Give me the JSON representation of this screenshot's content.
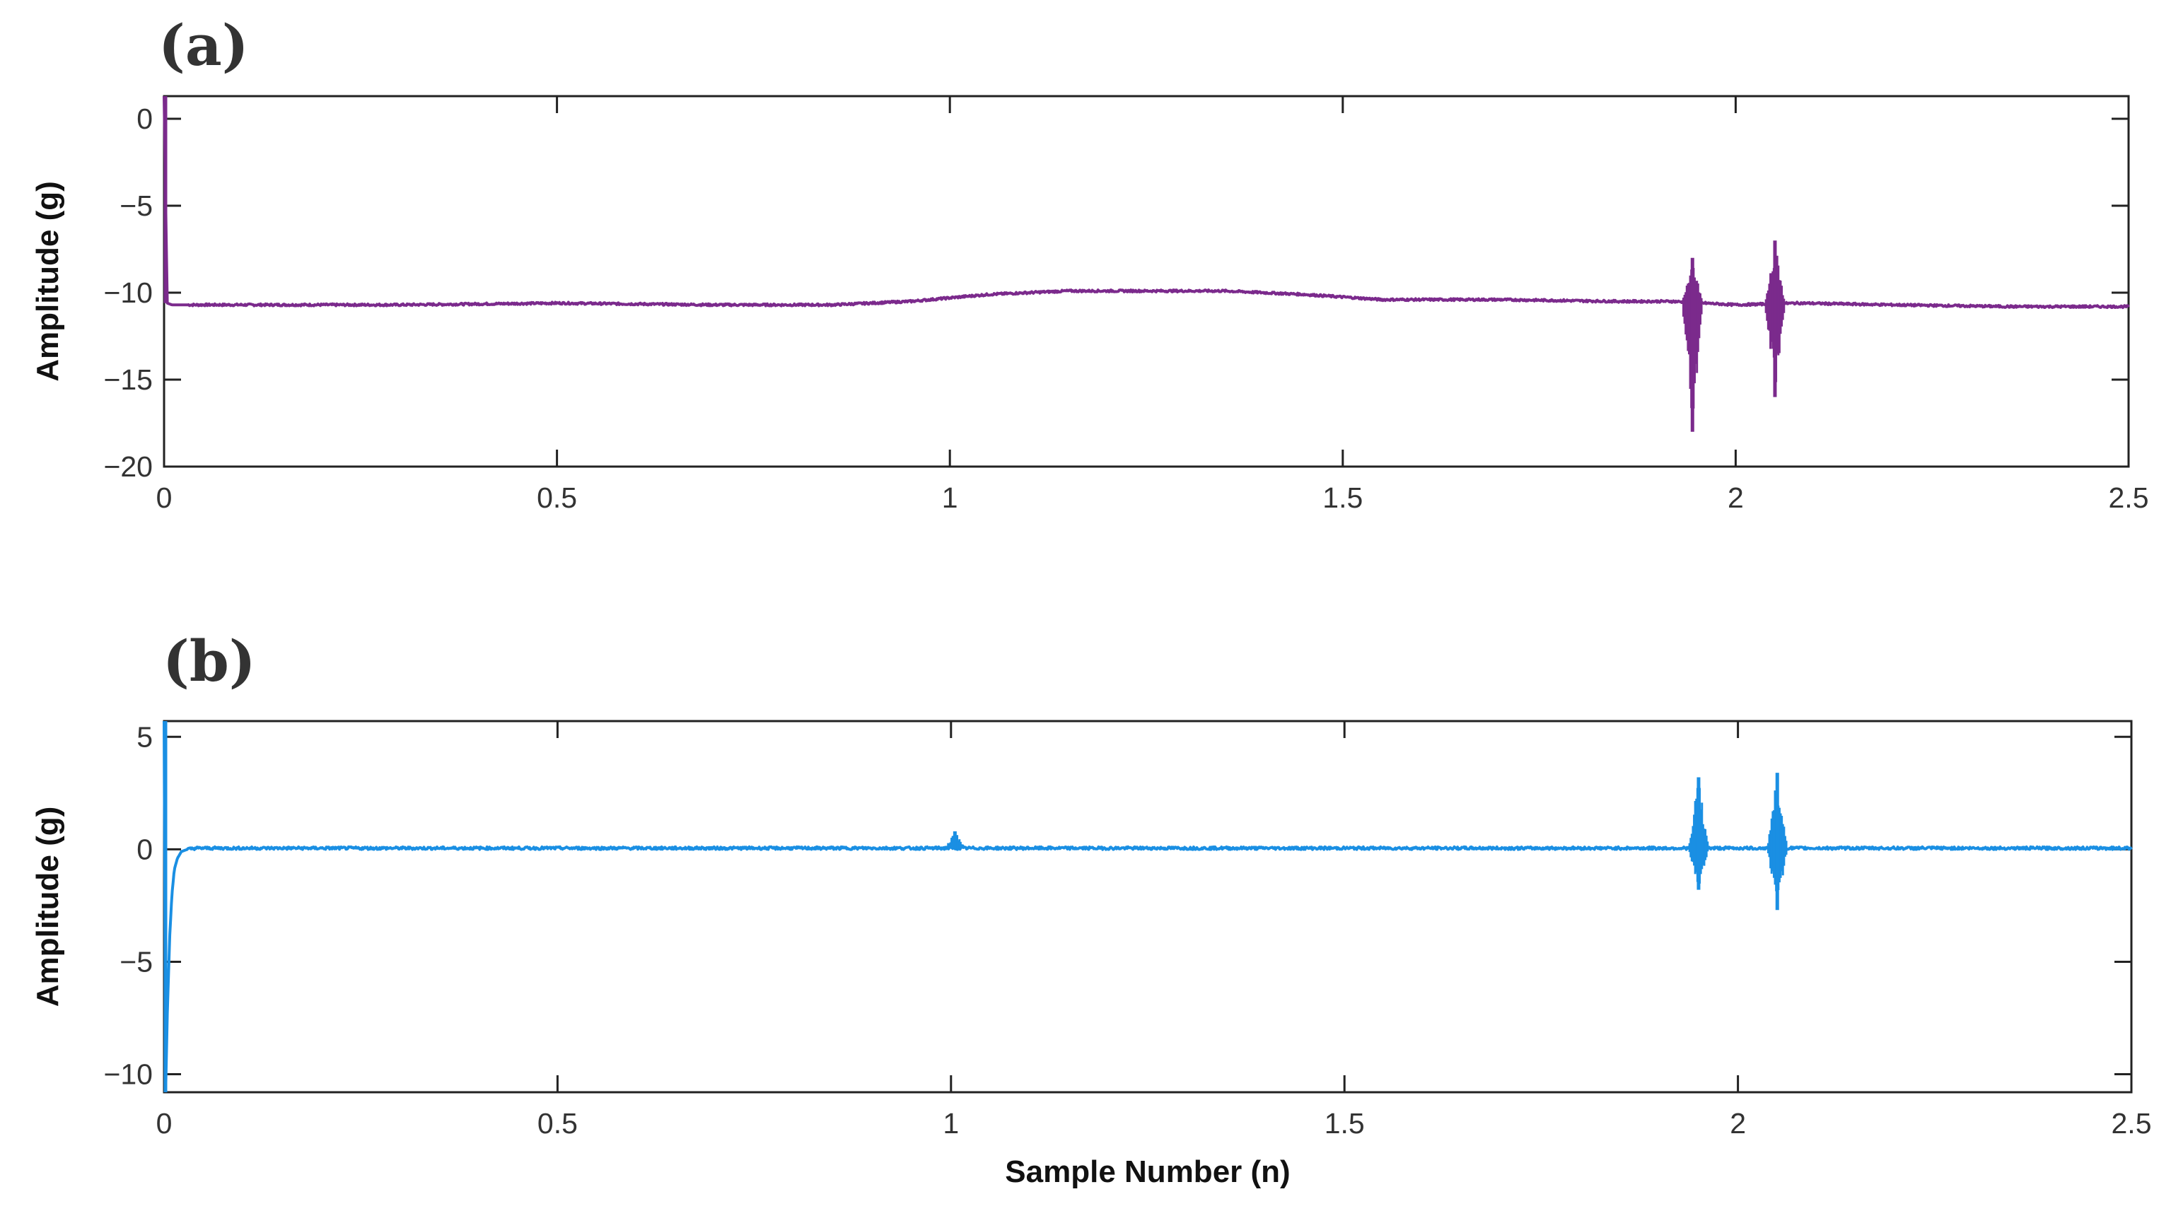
{
  "panels": [
    {
      "label": "(a)"
    },
    {
      "label": "(b)"
    }
  ],
  "chart_data": [
    {
      "type": "line",
      "panel": "(a)",
      "title": "",
      "xlabel": "",
      "ylabel": "Amplitude (g)",
      "xlim": [
        0,
        2.5
      ],
      "ylim": [
        -20,
        1.3
      ],
      "xticks": [
        0,
        0.5,
        1,
        1.5,
        2,
        2.5
      ],
      "xtick_labels": [
        "0",
        "0.5",
        "1",
        "1.5",
        "2",
        "2.5"
      ],
      "yticks": [
        0,
        -5,
        -10,
        -15,
        -20
      ],
      "ytick_labels": [
        "0",
        "−5",
        "−10",
        "−15",
        "−20"
      ],
      "grid": false,
      "color": "#7b2a8c",
      "series": [
        {
          "x": [
            0,
            0.004,
            0.01,
            0.1,
            0.3,
            0.5,
            0.7,
            0.85,
            0.95,
            1.05,
            1.15,
            1.25,
            1.35,
            1.45,
            1.55,
            1.7,
            1.85,
            1.92,
            2.0,
            2.08,
            2.2,
            2.35,
            2.5
          ],
          "values": [
            1.3,
            -10.6,
            -10.7,
            -10.7,
            -10.7,
            -10.6,
            -10.7,
            -10.7,
            -10.5,
            -10.1,
            -9.9,
            -9.9,
            -9.9,
            -10.1,
            -10.4,
            -10.4,
            -10.5,
            -10.5,
            -10.7,
            -10.6,
            -10.7,
            -10.8,
            -10.8
          ]
        }
      ],
      "bursts": [
        {
          "x": 1.945,
          "max": -8.0,
          "min": -18.0
        },
        {
          "x": 2.05,
          "max": -7.0,
          "min": -16.0
        }
      ]
    },
    {
      "type": "line",
      "panel": "(b)",
      "title": "",
      "xlabel": "Sample Number (n)",
      "ylabel": "Amplitude (g)",
      "xlim": [
        0,
        2.5
      ],
      "ylim": [
        -10.8,
        5.7
      ],
      "xticks": [
        0,
        0.5,
        1,
        1.5,
        2,
        2.5
      ],
      "xtick_labels": [
        "0",
        "0.5",
        "1",
        "1.5",
        "2",
        "2.5"
      ],
      "yticks": [
        5,
        0,
        -5,
        -10
      ],
      "ytick_labels": [
        "5",
        "0",
        "−5",
        "−10"
      ],
      "grid": false,
      "color": "#1a8fe3",
      "series": [
        {
          "x": [
            0,
            0.002,
            0.004,
            0.007,
            0.01,
            0.013,
            0.017,
            0.022,
            0.03,
            0.04,
            0.2,
            0.5,
            1.0,
            1.5,
            1.9,
            2.0,
            2.1,
            2.5
          ],
          "values": [
            5.7,
            -10.8,
            -7.5,
            -4.0,
            -2.0,
            -0.9,
            -0.4,
            -0.1,
            0.0,
            0.05,
            0.05,
            0.05,
            0.05,
            0.05,
            0.05,
            0.05,
            0.05,
            0.05
          ]
        }
      ],
      "bursts": [
        {
          "x": 1.95,
          "max": 3.2,
          "min": -1.8
        },
        {
          "x": 2.05,
          "max": 3.4,
          "min": -2.7
        },
        {
          "x": 1.005,
          "max": 0.8,
          "min": 0.0
        }
      ]
    }
  ]
}
